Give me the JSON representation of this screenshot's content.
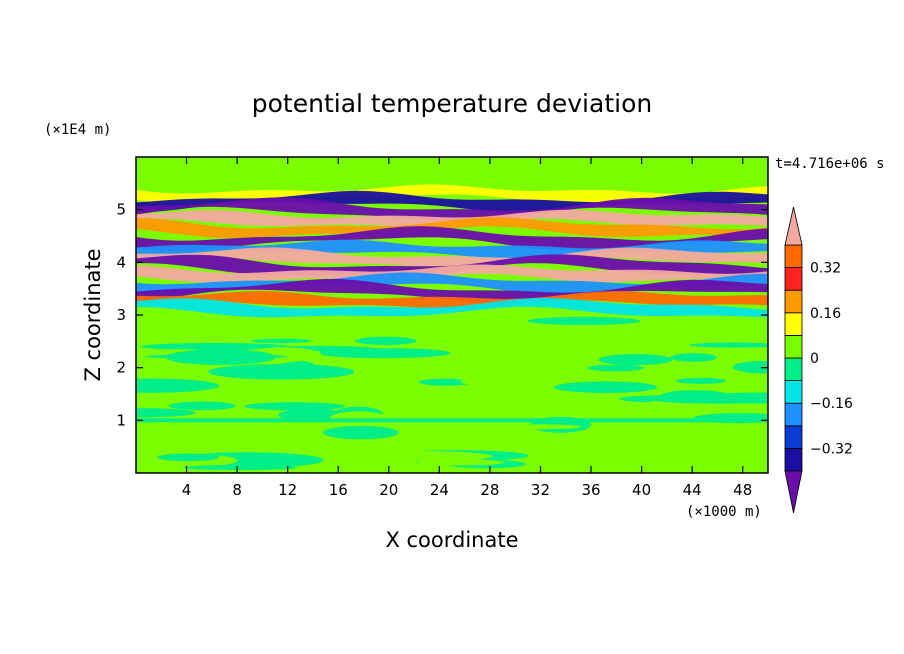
{
  "chart_data": {
    "type": "heatmap",
    "title": "potential temperature deviation",
    "xlabel": "X coordinate",
    "ylabel": "Z coordinate",
    "x_unit": "(×1000 m)",
    "y_unit": "(×1E4 m)",
    "time_label": "t=4.716e+06 s",
    "xlim": [
      0,
      50
    ],
    "ylim": [
      0,
      6
    ],
    "x_ticks": [
      4,
      8,
      12,
      16,
      20,
      24,
      28,
      32,
      36,
      40,
      44,
      48
    ],
    "y_ticks": [
      1,
      2,
      3,
      4,
      5
    ],
    "levels": [
      -0.4,
      -0.32,
      -0.24,
      -0.16,
      -0.08,
      0,
      0.08,
      0.16,
      0.24,
      0.32,
      0.4
    ],
    "colorbar_tick_labels": [
      "0.32",
      "0.16",
      "0",
      "−0.16",
      "−0.32"
    ],
    "colorbar_tick_values": [
      0.32,
      0.16,
      0,
      -0.16,
      -0.32
    ],
    "colors": [
      "#6a0dad",
      "#1a0fa0",
      "#0a3cd6",
      "#1e90ff",
      "#00e5e5",
      "#00ee88",
      "#7cfc00",
      "#ffff00",
      "#ff9900",
      "#ff2222",
      "#ff6a00",
      "#f4a9a0"
    ],
    "bands": [
      {
        "z": 5.3,
        "value": 0.12
      },
      {
        "z": 5.15,
        "value": -0.36
      },
      {
        "z": 5.0,
        "value": -0.42
      },
      {
        "z": 4.82,
        "value": 0.45
      },
      {
        "z": 4.65,
        "value": 0.2
      },
      {
        "z": 4.45,
        "value": -0.45
      },
      {
        "z": 4.25,
        "value": -0.2
      },
      {
        "z": 4.08,
        "value": 0.45
      },
      {
        "z": 3.92,
        "value": -0.42
      },
      {
        "z": 3.78,
        "value": 0.4
      },
      {
        "z": 3.6,
        "value": -0.2
      },
      {
        "z": 3.45,
        "value": -0.42
      },
      {
        "z": 3.28,
        "value": 0.35
      },
      {
        "z": 3.12,
        "value": -0.1
      }
    ]
  }
}
